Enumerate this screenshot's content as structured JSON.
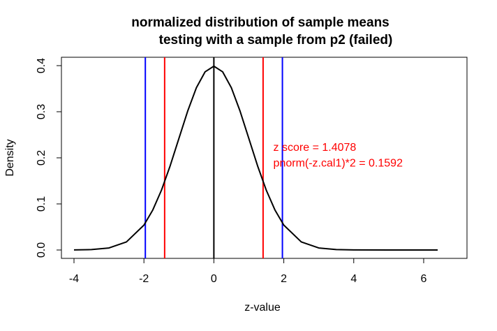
{
  "chart_data": {
    "type": "line",
    "title_line1": "normalized distribution of sample means",
    "title_line2": "testing with a sample from p2 (failed)",
    "xlabel": "z-value",
    "ylabel": "Density",
    "xlim": [
      -4,
      6.4
    ],
    "ylim": [
      0,
      0.4
    ],
    "x_ticks": [
      -4,
      -2,
      0,
      2,
      4,
      6
    ],
    "y_ticks": [
      0.0,
      0.1,
      0.2,
      0.3,
      0.4
    ],
    "x_tick_labels": [
      "-4",
      "-2",
      "0",
      "2",
      "4",
      "6"
    ],
    "y_tick_labels": [
      "0.0",
      "0.1",
      "0.2",
      "0.3",
      "0.4"
    ],
    "series": [
      {
        "color": "#000000",
        "x": [
          -4.0,
          -3.5,
          -3.0,
          -2.5,
          -2.0,
          -1.75,
          -1.5,
          -1.25,
          -1.0,
          -0.75,
          -0.5,
          -0.25,
          0.0,
          0.25,
          0.5,
          0.75,
          1.0,
          1.25,
          1.5,
          1.75,
          2.0,
          2.5,
          3.0,
          3.5,
          4.0,
          5.0,
          6.4
        ],
        "y": [
          0.0001,
          0.0009,
          0.0044,
          0.0175,
          0.054,
          0.0863,
          0.1295,
          0.1826,
          0.242,
          0.3011,
          0.3521,
          0.3867,
          0.3989,
          0.3867,
          0.3521,
          0.3011,
          0.242,
          0.1826,
          0.1295,
          0.0863,
          0.054,
          0.0175,
          0.0044,
          0.0009,
          0.0001,
          0.0,
          0.0
        ]
      }
    ],
    "vertical_lines": [
      {
        "x": -1.96,
        "color": "#0000ff"
      },
      {
        "x": 1.96,
        "color": "#0000ff"
      },
      {
        "x": -1.4078,
        "color": "#ff0000"
      },
      {
        "x": 1.4078,
        "color": "#ff0000"
      },
      {
        "x": 0,
        "color": "#000000"
      }
    ],
    "annotations": [
      {
        "text": "z score = 1.4078",
        "x": 1.7,
        "y": 0.215,
        "color": "#ff0000"
      },
      {
        "text": "pnorm(-z.cal1)*2 = 0.1592",
        "x": 1.7,
        "y": 0.181,
        "color": "#ff0000"
      }
    ]
  }
}
